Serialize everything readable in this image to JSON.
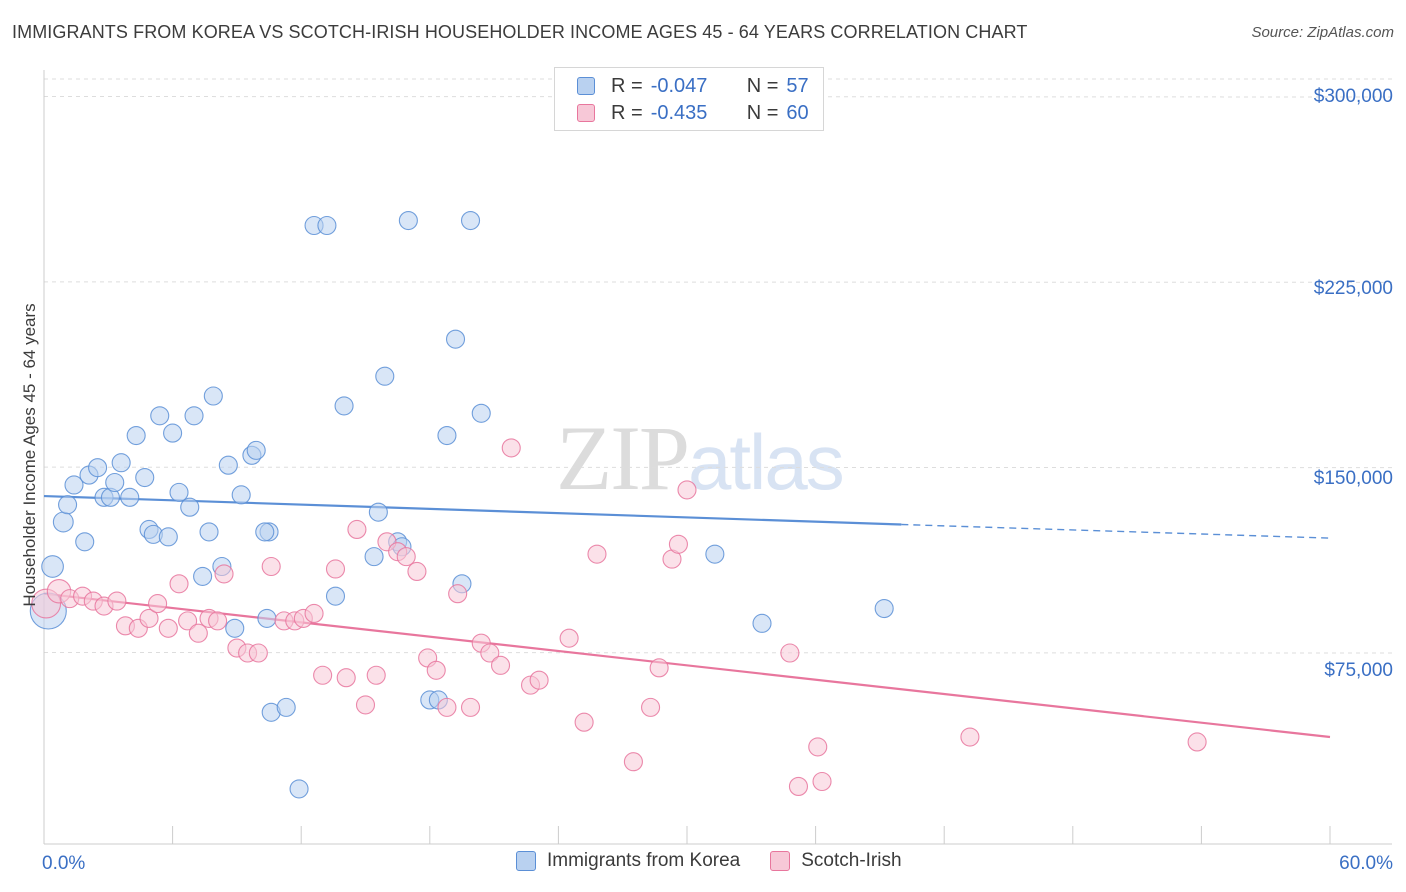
{
  "title": "IMMIGRANTS FROM KOREA VS SCOTCH-IRISH HOUSEHOLDER INCOME AGES 45 - 64 YEARS CORRELATION CHART",
  "source": "Source: ZipAtlas.com",
  "watermark": {
    "zip": "ZIP",
    "atlas": "atlas"
  },
  "legend_top": [
    {
      "r_label": "R =",
      "r_value": "-0.047",
      "n_label": "N =",
      "n_value": "57",
      "color": "#a8c4ea"
    },
    {
      "r_label": "R =",
      "r_value": "-0.435",
      "n_label": "N =",
      "n_value": "60",
      "color": "#f4b8cb"
    }
  ],
  "legend_bottom": [
    {
      "label": "Immigrants from Korea",
      "color": "#a8c4ea"
    },
    {
      "label": "Scotch-Irish",
      "color": "#f4b8cb"
    }
  ],
  "y_axis_label": "Householder Income Ages 45 - 64 years",
  "y_ticks": [
    "$300,000",
    "$225,000",
    "$150,000",
    "$75,000"
  ],
  "x_ticks": [
    "0.0%",
    "60.0%"
  ],
  "chart_data": {
    "type": "scatter",
    "xlabel": "",
    "ylabel": "Householder Income Ages 45 - 64 years",
    "xlim": [
      0,
      60
    ],
    "ylim": [
      0,
      310000
    ],
    "y_tick_values": [
      75000,
      150000,
      225000,
      300000
    ],
    "grid": "horizontal dashed",
    "series": [
      {
        "name": "Immigrants from Korea",
        "color": "#5b8fd6",
        "fill": "#b9d1f0",
        "points": [
          [
            0.2,
            92000,
            2.0
          ],
          [
            0.4,
            110000,
            1.2
          ],
          [
            0.9,
            128000,
            1.1
          ],
          [
            1.1,
            135000,
            1.0
          ],
          [
            1.4,
            143000,
            1.0
          ],
          [
            1.9,
            120000,
            1.0
          ],
          [
            2.1,
            147000,
            1.0
          ],
          [
            2.5,
            150000,
            1.0
          ],
          [
            2.8,
            138000,
            1.0
          ],
          [
            3.1,
            138000,
            1.0
          ],
          [
            3.3,
            144000,
            1.0
          ],
          [
            3.6,
            152000,
            1.0
          ],
          [
            4.0,
            138000,
            1.0
          ],
          [
            4.3,
            163000,
            1.0
          ],
          [
            4.7,
            146000,
            1.0
          ],
          [
            4.9,
            125000,
            1.0
          ],
          [
            5.1,
            123000,
            1.0
          ],
          [
            5.4,
            171000,
            1.0
          ],
          [
            5.8,
            122000,
            1.0
          ],
          [
            6.0,
            164000,
            1.0
          ],
          [
            6.3,
            140000,
            1.0
          ],
          [
            6.8,
            134000,
            1.0
          ],
          [
            7.0,
            171000,
            1.0
          ],
          [
            7.4,
            106000,
            1.0
          ],
          [
            7.7,
            124000,
            1.0
          ],
          [
            7.9,
            179000,
            1.0
          ],
          [
            8.3,
            110000,
            1.0
          ],
          [
            8.6,
            151000,
            1.0
          ],
          [
            8.9,
            85000,
            1.0
          ],
          [
            9.2,
            139000,
            1.0
          ],
          [
            9.7,
            155000,
            1.0
          ],
          [
            9.9,
            157000,
            1.0
          ],
          [
            10.5,
            124000,
            1.0
          ],
          [
            10.3,
            124000,
            1.0
          ],
          [
            10.4,
            89000,
            1.0
          ],
          [
            10.6,
            51000,
            1.0
          ],
          [
            11.3,
            53000,
            1.0
          ],
          [
            11.9,
            20000,
            1.0
          ],
          [
            12.6,
            248000,
            1.0
          ],
          [
            13.2,
            248000,
            1.0
          ],
          [
            13.6,
            98000,
            1.0
          ],
          [
            14.0,
            175000,
            1.0
          ],
          [
            15.4,
            114000,
            1.0
          ],
          [
            15.6,
            132000,
            1.0
          ],
          [
            15.9,
            187000,
            1.0
          ],
          [
            16.5,
            120000,
            1.0
          ],
          [
            16.7,
            118000,
            1.0
          ],
          [
            17.0,
            250000,
            1.0
          ],
          [
            18.0,
            56000,
            1.0
          ],
          [
            18.4,
            56000,
            1.0
          ],
          [
            18.8,
            163000,
            1.0
          ],
          [
            19.2,
            202000,
            1.0
          ],
          [
            19.5,
            103000,
            1.0
          ],
          [
            19.9,
            250000,
            1.0
          ],
          [
            20.4,
            172000,
            1.0
          ],
          [
            31.3,
            115000,
            1.0
          ],
          [
            33.5,
            87000,
            1.0
          ],
          [
            39.2,
            93000,
            1.0
          ]
        ],
        "trend": {
          "x": [
            0,
            40,
            60
          ],
          "y": [
            138500,
            127000,
            121500
          ],
          "solid_until": 40
        }
      },
      {
        "name": "Scotch-Irish",
        "color": "#e8769d",
        "fill": "#f7c8d7",
        "points": [
          [
            0.1,
            95000,
            1.6
          ],
          [
            0.7,
            100000,
            1.3
          ],
          [
            1.2,
            97000,
            1.0
          ],
          [
            1.8,
            98000,
            1.0
          ],
          [
            2.3,
            96000,
            1.0
          ],
          [
            2.8,
            94000,
            1.0
          ],
          [
            3.4,
            96000,
            1.0
          ],
          [
            3.8,
            86000,
            1.0
          ],
          [
            4.4,
            85000,
            1.0
          ],
          [
            4.9,
            89000,
            1.0
          ],
          [
            5.3,
            95000,
            1.0
          ],
          [
            5.8,
            85000,
            1.0
          ],
          [
            6.3,
            103000,
            1.0
          ],
          [
            6.7,
            88000,
            1.0
          ],
          [
            7.2,
            83000,
            1.0
          ],
          [
            7.7,
            89000,
            1.0
          ],
          [
            8.1,
            88000,
            1.0
          ],
          [
            8.4,
            107000,
            1.0
          ],
          [
            9.0,
            77000,
            1.0
          ],
          [
            9.5,
            75000,
            1.0
          ],
          [
            10.0,
            75000,
            1.0
          ],
          [
            10.6,
            110000,
            1.0
          ],
          [
            11.2,
            88000,
            1.0
          ],
          [
            11.7,
            88000,
            1.0
          ],
          [
            12.1,
            89000,
            1.0
          ],
          [
            12.6,
            91000,
            1.0
          ],
          [
            13.0,
            66000,
            1.0
          ],
          [
            13.6,
            109000,
            1.0
          ],
          [
            14.1,
            65000,
            1.0
          ],
          [
            14.6,
            125000,
            1.0
          ],
          [
            15.0,
            54000,
            1.0
          ],
          [
            15.5,
            66000,
            1.0
          ],
          [
            16.0,
            120000,
            1.0
          ],
          [
            16.5,
            116000,
            1.0
          ],
          [
            16.9,
            114000,
            1.0
          ],
          [
            17.4,
            108000,
            1.0
          ],
          [
            17.9,
            73000,
            1.0
          ],
          [
            18.3,
            68000,
            1.0
          ],
          [
            18.8,
            53000,
            1.0
          ],
          [
            19.3,
            99000,
            1.0
          ],
          [
            19.9,
            53000,
            1.0
          ],
          [
            20.4,
            79000,
            1.0
          ],
          [
            20.8,
            75000,
            1.0
          ],
          [
            21.3,
            70000,
            1.0
          ],
          [
            21.8,
            158000,
            1.0
          ],
          [
            22.7,
            62000,
            1.0
          ],
          [
            23.1,
            64000,
            1.0
          ],
          [
            24.5,
            81000,
            1.0
          ],
          [
            25.2,
            47000,
            1.0
          ],
          [
            25.8,
            115000,
            1.0
          ],
          [
            27.5,
            31000,
            1.0
          ],
          [
            28.3,
            53000,
            1.0
          ],
          [
            28.7,
            69000,
            1.0
          ],
          [
            29.3,
            113000,
            1.0
          ],
          [
            29.6,
            119000,
            1.0
          ],
          [
            30.0,
            141000,
            1.0
          ],
          [
            34.8,
            75000,
            1.0
          ],
          [
            35.2,
            21000,
            1.0
          ],
          [
            36.1,
            37000,
            1.0
          ],
          [
            36.3,
            23000,
            1.0
          ],
          [
            43.2,
            41000,
            1.0
          ],
          [
            53.8,
            39000,
            1.0
          ]
        ],
        "trend": {
          "x": [
            0,
            60
          ],
          "y": [
            99000,
            41000
          ],
          "solid_until": 60
        }
      }
    ]
  }
}
